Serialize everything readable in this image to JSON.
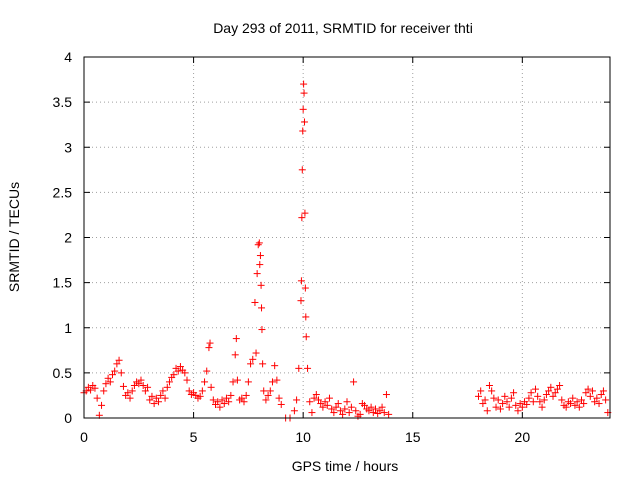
{
  "chart_data": {
    "type": "scatter",
    "title": "Day 293 of 2011, SRMTID for receiver thti",
    "xlabel": "GPS time / hours",
    "ylabel": "SRMTID / TECUs",
    "xlim": [
      0,
      24
    ],
    "ylim": [
      0,
      4
    ],
    "xticks": [
      0,
      5,
      10,
      15,
      20
    ],
    "yticks": [
      0,
      0.5,
      1,
      1.5,
      2,
      2.5,
      3,
      3.5,
      4
    ],
    "grid": true,
    "marker": "+",
    "marker_color": "#ff0000",
    "series": [
      {
        "name": "SRMTID",
        "points": [
          [
            0.0,
            0.28
          ],
          [
            0.1,
            0.3
          ],
          [
            0.2,
            0.34
          ],
          [
            0.3,
            0.31
          ],
          [
            0.4,
            0.36
          ],
          [
            0.5,
            0.33
          ],
          [
            0.6,
            0.22
          ],
          [
            0.7,
            0.03
          ],
          [
            0.8,
            0.14
          ],
          [
            0.9,
            0.3
          ],
          [
            1.0,
            0.38
          ],
          [
            1.1,
            0.44
          ],
          [
            1.2,
            0.4
          ],
          [
            1.3,
            0.48
          ],
          [
            1.4,
            0.52
          ],
          [
            1.5,
            0.6
          ],
          [
            1.6,
            0.64
          ],
          [
            1.7,
            0.5
          ],
          [
            1.8,
            0.35
          ],
          [
            1.9,
            0.25
          ],
          [
            2.0,
            0.28
          ],
          [
            2.1,
            0.22
          ],
          [
            2.2,
            0.3
          ],
          [
            2.3,
            0.36
          ],
          [
            2.4,
            0.4
          ],
          [
            2.5,
            0.38
          ],
          [
            2.6,
            0.42
          ],
          [
            2.7,
            0.36
          ],
          [
            2.8,
            0.3
          ],
          [
            2.9,
            0.34
          ],
          [
            3.0,
            0.2
          ],
          [
            3.1,
            0.24
          ],
          [
            3.2,
            0.16
          ],
          [
            3.3,
            0.22
          ],
          [
            3.4,
            0.18
          ],
          [
            3.5,
            0.25
          ],
          [
            3.6,
            0.3
          ],
          [
            3.7,
            0.22
          ],
          [
            3.8,
            0.34
          ],
          [
            3.9,
            0.4
          ],
          [
            4.0,
            0.45
          ],
          [
            4.1,
            0.48
          ],
          [
            4.2,
            0.55
          ],
          [
            4.3,
            0.52
          ],
          [
            4.4,
            0.57
          ],
          [
            4.5,
            0.53
          ],
          [
            4.6,
            0.5
          ],
          [
            4.7,
            0.42
          ],
          [
            4.8,
            0.3
          ],
          [
            4.9,
            0.26
          ],
          [
            5.0,
            0.28
          ],
          [
            5.1,
            0.25
          ],
          [
            5.2,
            0.22
          ],
          [
            5.3,
            0.24
          ],
          [
            5.4,
            0.3
          ],
          [
            5.5,
            0.4
          ],
          [
            5.6,
            0.52
          ],
          [
            5.7,
            0.78
          ],
          [
            5.75,
            0.83
          ],
          [
            5.8,
            0.34
          ],
          [
            5.9,
            0.2
          ],
          [
            6.0,
            0.15
          ],
          [
            6.1,
            0.18
          ],
          [
            6.2,
            0.12
          ],
          [
            6.3,
            0.2
          ],
          [
            6.4,
            0.16
          ],
          [
            6.5,
            0.22
          ],
          [
            6.6,
            0.18
          ],
          [
            6.7,
            0.25
          ],
          [
            6.8,
            0.4
          ],
          [
            6.9,
            0.7
          ],
          [
            6.95,
            0.88
          ],
          [
            7.0,
            0.42
          ],
          [
            7.1,
            0.2
          ],
          [
            7.2,
            0.22
          ],
          [
            7.3,
            0.18
          ],
          [
            7.4,
            0.25
          ],
          [
            7.5,
            0.4
          ],
          [
            7.6,
            0.6
          ],
          [
            7.7,
            0.65
          ],
          [
            7.8,
            1.28
          ],
          [
            7.85,
            0.72
          ],
          [
            7.9,
            1.6
          ],
          [
            7.95,
            1.92
          ],
          [
            8.0,
            1.94
          ],
          [
            8.02,
            1.7
          ],
          [
            8.05,
            1.8
          ],
          [
            8.08,
            1.47
          ],
          [
            8.1,
            1.22
          ],
          [
            8.12,
            0.98
          ],
          [
            8.15,
            0.6
          ],
          [
            8.2,
            0.3
          ],
          [
            8.3,
            0.2
          ],
          [
            8.4,
            0.25
          ],
          [
            8.5,
            0.3
          ],
          [
            8.6,
            0.4
          ],
          [
            8.7,
            0.58
          ],
          [
            8.8,
            0.42
          ],
          [
            8.9,
            0.22
          ],
          [
            9.0,
            0.15
          ],
          [
            9.2,
            0.0
          ],
          [
            9.4,
            0.0
          ],
          [
            9.6,
            0.08
          ],
          [
            9.7,
            0.2
          ],
          [
            9.8,
            0.55
          ],
          [
            9.9,
            1.3
          ],
          [
            9.92,
            1.52
          ],
          [
            9.94,
            2.22
          ],
          [
            9.96,
            2.75
          ],
          [
            9.98,
            3.18
          ],
          [
            10.0,
            3.42
          ],
          [
            10.02,
            3.7
          ],
          [
            10.04,
            3.6
          ],
          [
            10.06,
            3.28
          ],
          [
            10.08,
            2.27
          ],
          [
            10.1,
            1.44
          ],
          [
            10.12,
            1.12
          ],
          [
            10.14,
            0.9
          ],
          [
            10.2,
            0.55
          ],
          [
            10.3,
            0.18
          ],
          [
            10.4,
            0.06
          ],
          [
            10.5,
            0.22
          ],
          [
            10.6,
            0.26
          ],
          [
            10.7,
            0.2
          ],
          [
            10.8,
            0.16
          ],
          [
            10.9,
            0.12
          ],
          [
            11.0,
            0.18
          ],
          [
            11.1,
            0.14
          ],
          [
            11.2,
            0.22
          ],
          [
            11.3,
            0.1
          ],
          [
            11.4,
            0.06
          ],
          [
            11.5,
            0.12
          ],
          [
            11.6,
            0.16
          ],
          [
            11.7,
            0.08
          ],
          [
            11.8,
            0.04
          ],
          [
            11.9,
            0.1
          ],
          [
            12.0,
            0.18
          ],
          [
            12.1,
            0.06
          ],
          [
            12.2,
            0.12
          ],
          [
            12.3,
            0.4
          ],
          [
            12.4,
            0.08
          ],
          [
            12.5,
            0.02
          ],
          [
            12.6,
            0.04
          ],
          [
            12.7,
            0.16
          ],
          [
            12.8,
            0.14
          ],
          [
            12.9,
            0.1
          ],
          [
            13.0,
            0.08
          ],
          [
            13.1,
            0.12
          ],
          [
            13.2,
            0.06
          ],
          [
            13.3,
            0.1
          ],
          [
            13.4,
            0.05
          ],
          [
            13.5,
            0.08
          ],
          [
            13.6,
            0.12
          ],
          [
            13.7,
            0.06
          ],
          [
            13.8,
            0.26
          ],
          [
            13.9,
            0.04
          ],
          [
            18.0,
            0.24
          ],
          [
            18.1,
            0.3
          ],
          [
            18.2,
            0.16
          ],
          [
            18.3,
            0.2
          ],
          [
            18.4,
            0.08
          ],
          [
            18.5,
            0.36
          ],
          [
            18.6,
            0.3
          ],
          [
            18.7,
            0.22
          ],
          [
            18.8,
            0.12
          ],
          [
            18.9,
            0.2
          ],
          [
            19.0,
            0.1
          ],
          [
            19.1,
            0.16
          ],
          [
            19.2,
            0.24
          ],
          [
            19.3,
            0.18
          ],
          [
            19.4,
            0.12
          ],
          [
            19.5,
            0.22
          ],
          [
            19.6,
            0.28
          ],
          [
            19.7,
            0.14
          ],
          [
            19.8,
            0.08
          ],
          [
            19.9,
            0.16
          ],
          [
            20.0,
            0.12
          ],
          [
            20.1,
            0.18
          ],
          [
            20.2,
            0.15
          ],
          [
            20.3,
            0.22
          ],
          [
            20.4,
            0.28
          ],
          [
            20.5,
            0.18
          ],
          [
            20.6,
            0.32
          ],
          [
            20.7,
            0.24
          ],
          [
            20.8,
            0.18
          ],
          [
            20.9,
            0.12
          ],
          [
            21.0,
            0.2
          ],
          [
            21.1,
            0.26
          ],
          [
            21.2,
            0.3
          ],
          [
            21.3,
            0.34
          ],
          [
            21.4,
            0.24
          ],
          [
            21.5,
            0.28
          ],
          [
            21.6,
            0.32
          ],
          [
            21.7,
            0.36
          ],
          [
            21.8,
            0.2
          ],
          [
            21.9,
            0.14
          ],
          [
            22.0,
            0.12
          ],
          [
            22.1,
            0.18
          ],
          [
            22.2,
            0.16
          ],
          [
            22.3,
            0.22
          ],
          [
            22.4,
            0.14
          ],
          [
            22.5,
            0.18
          ],
          [
            22.6,
            0.12
          ],
          [
            22.7,
            0.2
          ],
          [
            22.8,
            0.16
          ],
          [
            22.9,
            0.28
          ],
          [
            23.0,
            0.32
          ],
          [
            23.1,
            0.24
          ],
          [
            23.2,
            0.3
          ],
          [
            23.3,
            0.18
          ],
          [
            23.4,
            0.22
          ],
          [
            23.5,
            0.16
          ],
          [
            23.6,
            0.26
          ],
          [
            23.7,
            0.3
          ],
          [
            23.8,
            0.2
          ],
          [
            23.9,
            0.06
          ]
        ]
      }
    ]
  }
}
